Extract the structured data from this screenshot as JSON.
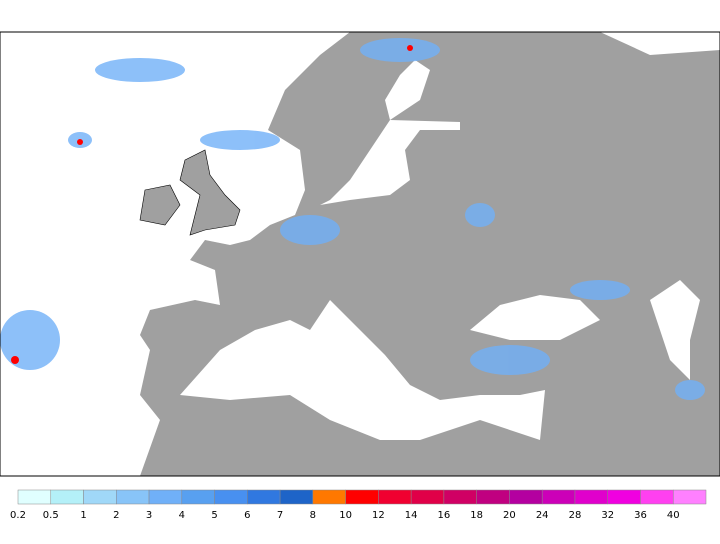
{
  "legend": {
    "labels": [
      "0.2",
      "0.5",
      "1",
      "2",
      "3",
      "4",
      "5",
      "6",
      "7",
      "8",
      "10",
      "12",
      "14",
      "16",
      "18",
      "20",
      "24",
      "28",
      "32",
      "36",
      "40"
    ],
    "colors": [
      "#e0ffff",
      "#b4f0f8",
      "#a0d8f8",
      "#88c4f8",
      "#70b0f8",
      "#58a0f0",
      "#4890f0",
      "#3078e0",
      "#1e64c8",
      "#ff7800",
      "#ff0000",
      "#f00030",
      "#e00048",
      "#d00064",
      "#c00080",
      "#b400a0",
      "#cc00b8",
      "#e000cc",
      "#f000e0",
      "#ff40f0",
      "#ff80ff"
    ]
  }
}
